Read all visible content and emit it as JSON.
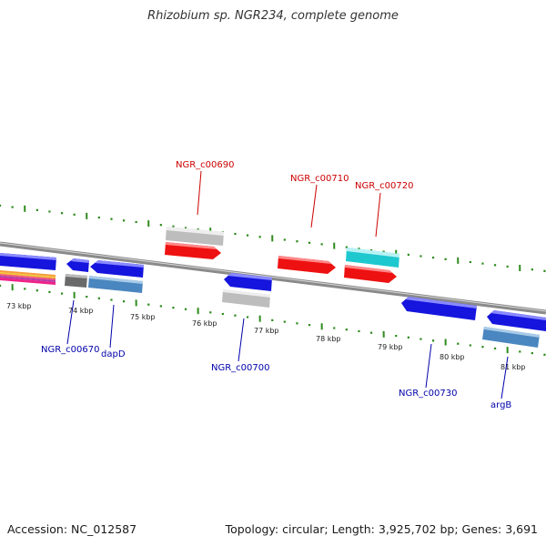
{
  "title": "Rhizobium sp. NGR234, complete genome",
  "footer": {
    "accession": "Accession: NC_012587",
    "summary": "Topology: circular; Length: 3,925,702 bp; Genes: 3,691"
  },
  "colors": {
    "backbone": "#8a8a8a",
    "tick": "#2e8b1e",
    "forward_label": "#cc0000",
    "reverse_label": "#0000aa",
    "feature_red": "#ee1111",
    "feature_blue": "#1515dd",
    "feature_gray": "#bdbdbd",
    "feature_cyan": "#1ec8cf",
    "feature_steelblue": "#4a86bf",
    "feature_darkgray": "#6a6a6a"
  },
  "scale": {
    "unit": "kbp",
    "labels": [
      "73 kbp",
      "74 kbp",
      "75 kbp",
      "76 kbp",
      "77 kbp",
      "78 kbp",
      "79 kbp",
      "80 kbp",
      "81 kbp"
    ]
  },
  "gene_labels": {
    "forward": [
      "NGR_c00690",
      "NGR_c00710",
      "NGR_c00720"
    ],
    "reverse": [
      "NGR_c00670",
      "dapD",
      "NGR_c00700",
      "NGR_c00730",
      "argB"
    ]
  }
}
